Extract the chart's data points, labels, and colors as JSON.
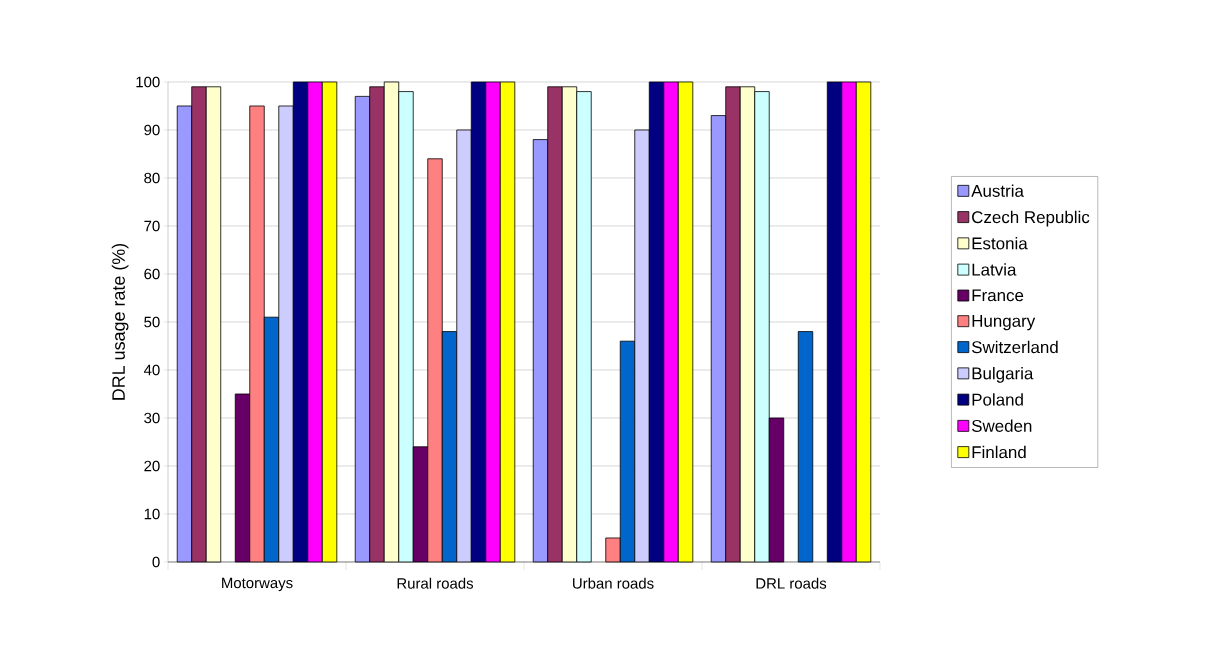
{
  "chart_data": {
    "type": "bar",
    "ylabel": "DRL usage rate (%)",
    "categories": [
      "Motorways",
      "Rural roads",
      "Urban roads",
      "DRL roads"
    ],
    "ylim": [
      0,
      100
    ],
    "yticks": [
      0,
      10,
      20,
      30,
      40,
      50,
      60,
      70,
      80,
      90,
      100
    ],
    "grid": "y",
    "legend": "right",
    "series": [
      {
        "name": "Austria",
        "color": "#9999ff",
        "values": [
          95,
          97,
          88,
          93
        ]
      },
      {
        "name": "Czech Republic",
        "color": "#993366",
        "values": [
          99,
          99,
          99,
          99
        ]
      },
      {
        "name": "Estonia",
        "color": "#ffffcc",
        "values": [
          99,
          100,
          99,
          99
        ]
      },
      {
        "name": "Latvia",
        "color": "#ccffff",
        "values": [
          null,
          98,
          98,
          98
        ]
      },
      {
        "name": "France",
        "color": "#660066",
        "values": [
          35,
          24,
          null,
          30
        ]
      },
      {
        "name": "Hungary",
        "color": "#ff8080",
        "values": [
          95,
          84,
          5,
          null
        ]
      },
      {
        "name": "Switzerland",
        "color": "#0066cc",
        "values": [
          51,
          48,
          46,
          48
        ]
      },
      {
        "name": "Bulgaria",
        "color": "#ccccff",
        "values": [
          95,
          90,
          90,
          null
        ]
      },
      {
        "name": "Poland",
        "color": "#000080",
        "values": [
          100,
          100,
          100,
          100
        ]
      },
      {
        "name": "Sweden",
        "color": "#ff00ff",
        "values": [
          100,
          100,
          100,
          100
        ]
      },
      {
        "name": "Finland",
        "color": "#ffff00",
        "values": [
          100,
          100,
          100,
          100
        ]
      }
    ]
  }
}
